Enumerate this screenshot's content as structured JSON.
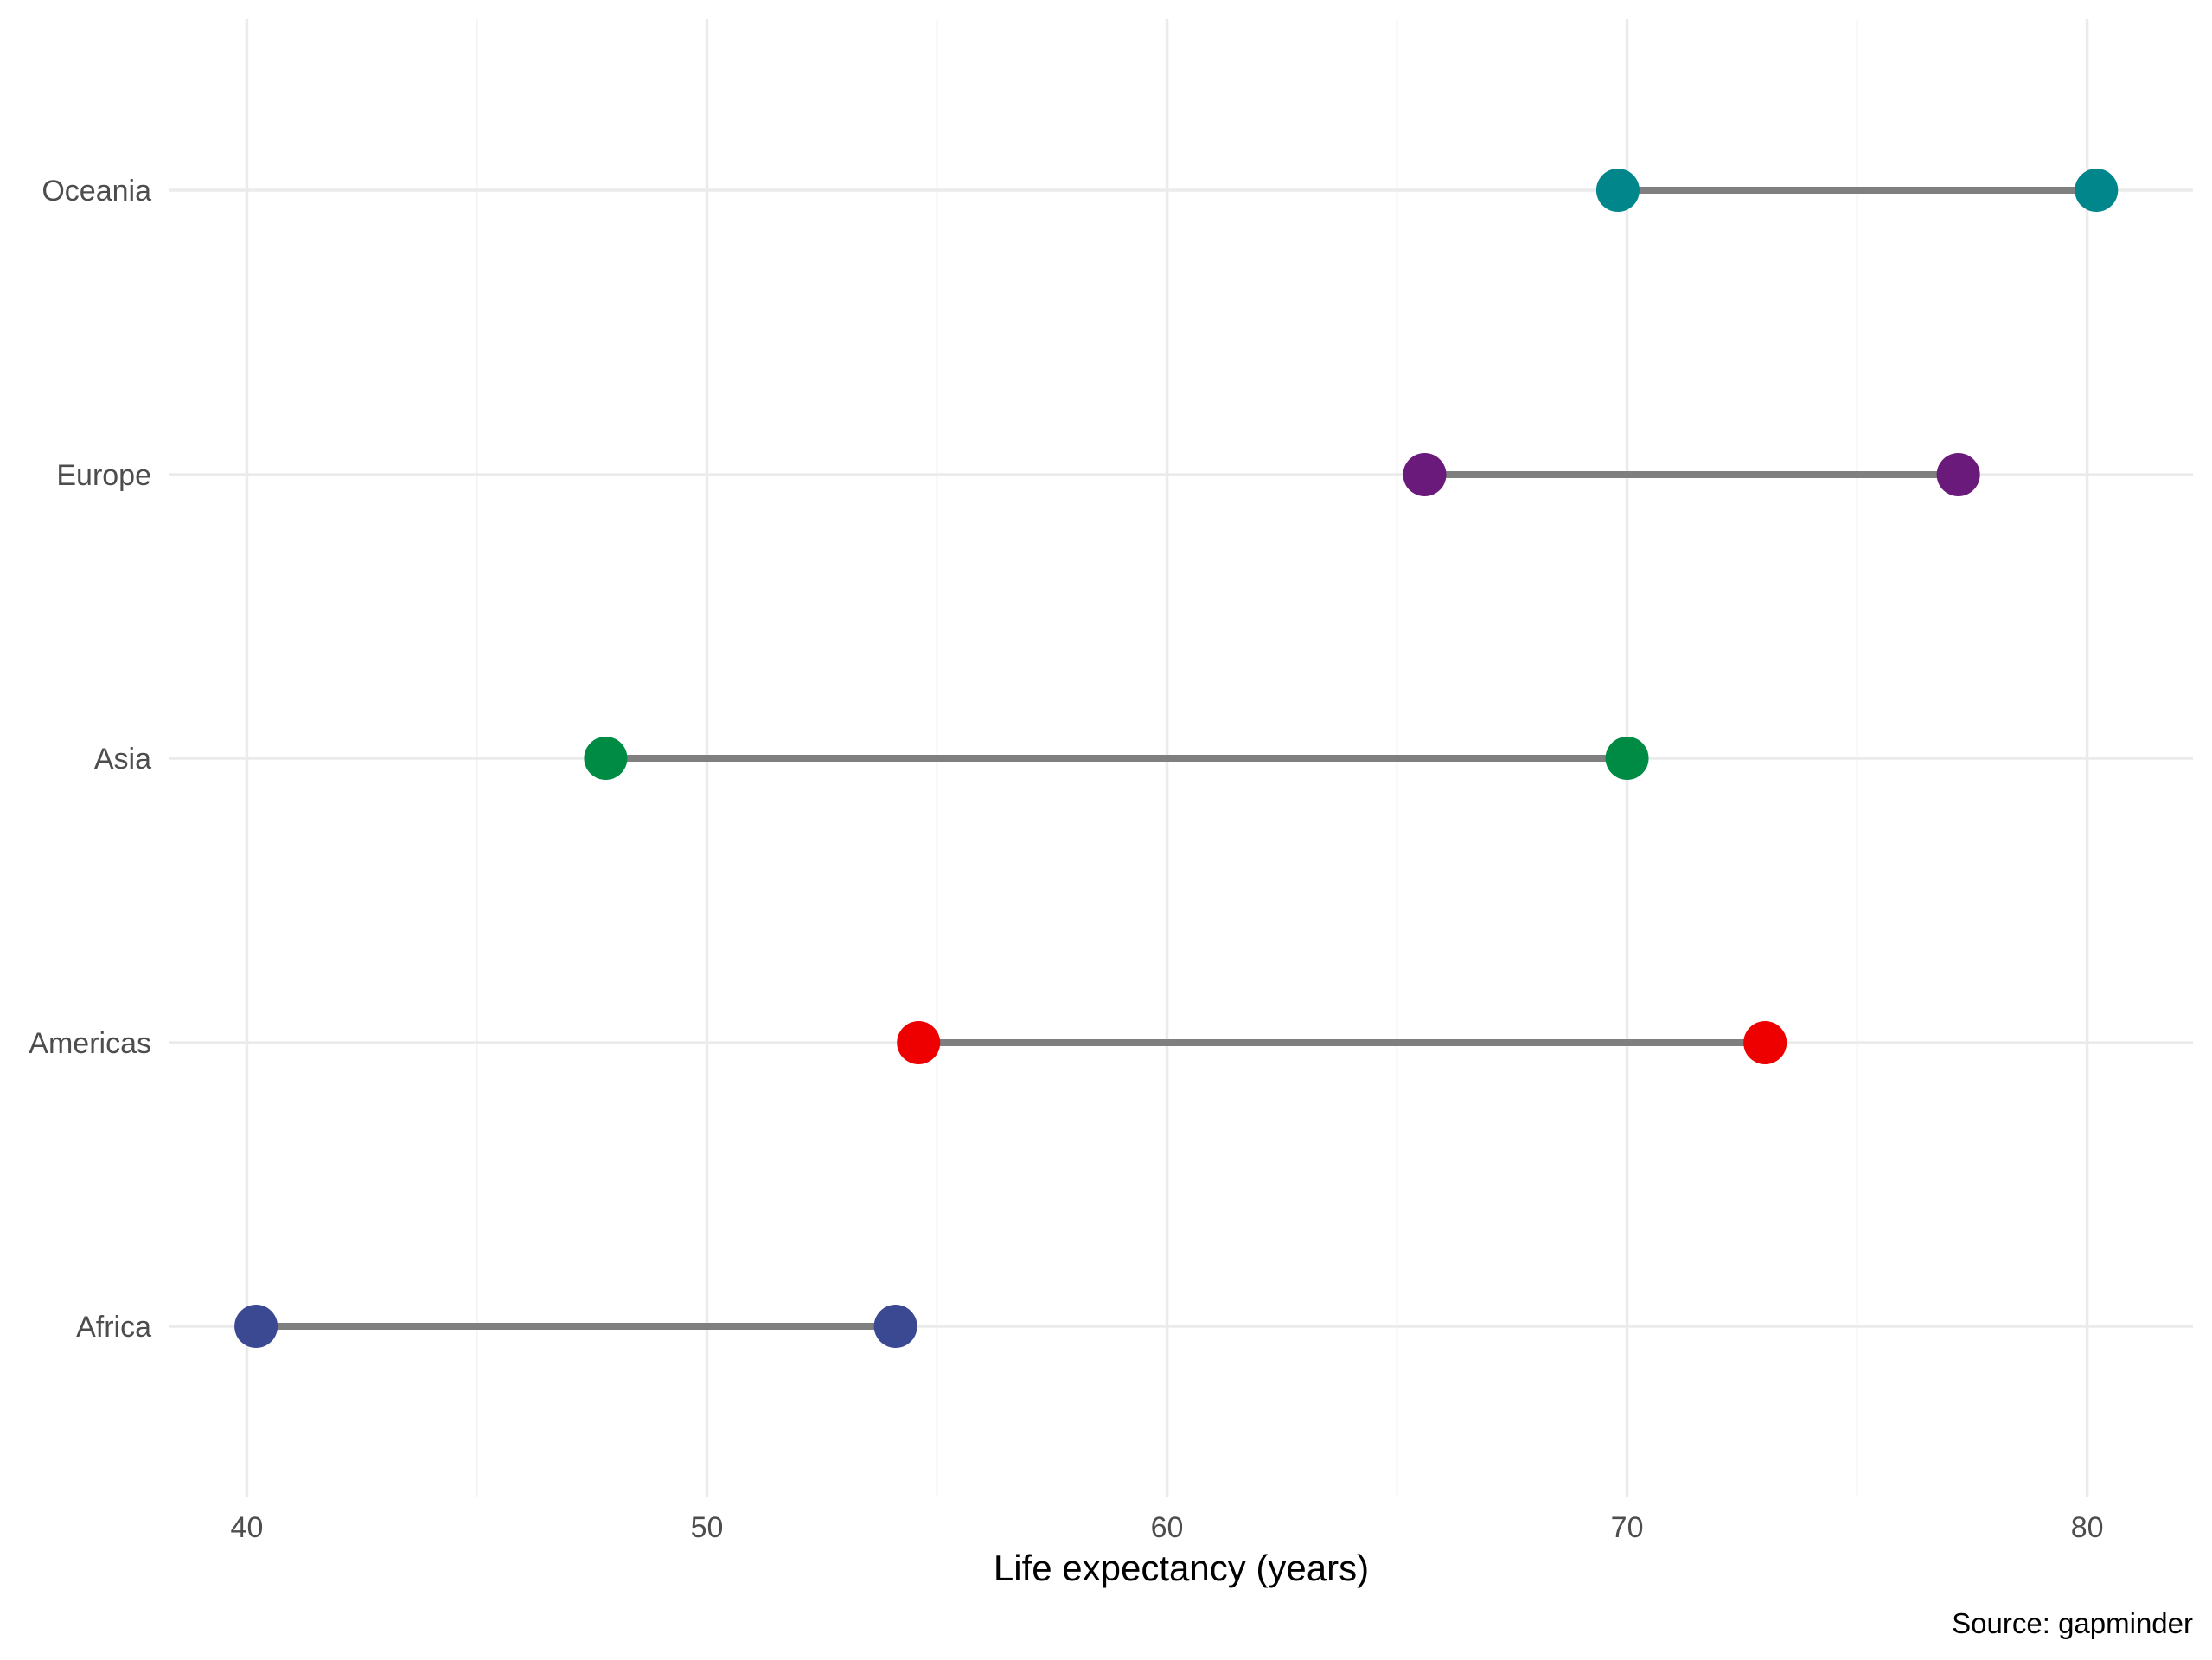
{
  "chart_data": {
    "type": "dumbbell",
    "xlabel": "Life expectancy (years)",
    "ylabel": "",
    "caption": "Source: gapminder",
    "xlim": [
      38.3,
      82.3
    ],
    "x_ticks": [
      40,
      50,
      60,
      70,
      80
    ],
    "x_tick_labels": [
      "40",
      "50",
      "60",
      "70",
      "80"
    ],
    "categories": [
      "Oceania",
      "Europe",
      "Asia",
      "Americas",
      "Africa"
    ],
    "grid": true,
    "legend": "none",
    "rows": [
      {
        "label": "Oceania",
        "start": 69.8,
        "end": 80.2,
        "color": "#00868B"
      },
      {
        "label": "Europe",
        "start": 65.6,
        "end": 77.2,
        "color": "#6A1A7A"
      },
      {
        "label": "Asia",
        "start": 47.8,
        "end": 70.0,
        "color": "#008B45"
      },
      {
        "label": "Americas",
        "start": 54.6,
        "end": 73.0,
        "color": "#EE0000"
      },
      {
        "label": "Africa",
        "start": 40.2,
        "end": 54.1,
        "color": "#3B4992"
      }
    ]
  }
}
